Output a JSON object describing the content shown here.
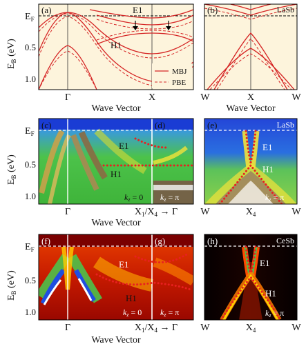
{
  "figure": {
    "ylabel": "E_B (eV)",
    "ef_label": "E_F",
    "xlabel": "Wave Vector",
    "y_ticks": [
      "0.5",
      "1.0"
    ]
  },
  "panels": {
    "a": {
      "label": "(a)",
      "xticks": [
        "Γ",
        "X"
      ]
    },
    "b": {
      "label": "(b)",
      "material": "LaSb",
      "xticks": [
        "W",
        "X",
        "W"
      ]
    },
    "c": {
      "label": "(c)",
      "kz": "k_z = 0",
      "xticks": [
        "Γ"
      ]
    },
    "d": {
      "label": "(d)",
      "kz": "k_z = π"
    },
    "e": {
      "label": "(e)",
      "material": "LaSb",
      "kz": "k_z = π",
      "xticks": [
        "W",
        "X_4",
        "W"
      ]
    },
    "f": {
      "label": "(f)",
      "kz": "k_z = 0",
      "xticks": [
        "Γ"
      ]
    },
    "g": {
      "label": "(g)",
      "kz": "k_z = π"
    },
    "h": {
      "label": "(h)",
      "material": "CeSb",
      "kz": "k_z = π",
      "xticks": [
        "W",
        "X_4",
        "W"
      ]
    },
    "cd_right_tick": "X_1/X_4 → Γ"
  },
  "band_labels": {
    "e1": "E1",
    "h1": "H1"
  },
  "legend": {
    "mbj": "MBJ",
    "pbe": "PBE"
  },
  "colors": {
    "dft_background": "#fdf4dc",
    "band_line": "#d52424",
    "fermi_line": "#000000",
    "arpes_low": "#1a3fd6",
    "arpes_mid": "#3ac23a",
    "arpes_high": "#f2e23a",
    "arpes_peak": "#ffffff",
    "cesb_low": "#000000",
    "cesb_mid": "#c81e00",
    "cesb_high": "#ffd000",
    "dots": "#e82020"
  },
  "chart_data": [
    {
      "panel": "a",
      "type": "line",
      "ylabel": "E_B (eV)",
      "xlabel": "Wave Vector",
      "ylim": [
        1.25,
        -0.15
      ],
      "x_ticks": [
        "Γ",
        "X"
      ],
      "series": [
        {
          "name": "MBJ",
          "style": "solid"
        },
        {
          "name": "PBE",
          "style": "dashed"
        }
      ],
      "annotations": [
        "E1",
        "H1"
      ]
    },
    {
      "panel": "b",
      "type": "line",
      "ylabel": "",
      "xlabel": "Wave Vector",
      "ylim": [
        1.25,
        -0.15
      ],
      "x_ticks": [
        "W",
        "X",
        "W"
      ],
      "annotations": [
        "LaSb"
      ]
    },
    {
      "panel": "c-d",
      "type": "heatmap",
      "xlabel": "Wave Vector",
      "ylabel": "E_B (eV)",
      "x_ticks": [
        "Γ",
        "X_1/X_4 → Γ"
      ],
      "annotations": [
        "E1",
        "H1",
        "k_z = 0",
        "k_z = π"
      ]
    },
    {
      "panel": "e",
      "type": "heatmap",
      "x_ticks": [
        "W",
        "X_4",
        "W"
      ],
      "annotations": [
        "E1",
        "H1",
        "k_z = π",
        "LaSb"
      ]
    },
    {
      "panel": "f-g",
      "type": "heatmap",
      "x_ticks": [
        "Γ",
        "X_1/X_4 → Γ"
      ],
      "annotations": [
        "E1",
        "H1",
        "k_z = 0",
        "k_z = π"
      ]
    },
    {
      "panel": "h",
      "type": "heatmap",
      "x_ticks": [
        "W",
        "X_4",
        "W"
      ],
      "annotations": [
        "E1",
        "H1",
        "k_z = π",
        "CeSb"
      ]
    }
  ]
}
